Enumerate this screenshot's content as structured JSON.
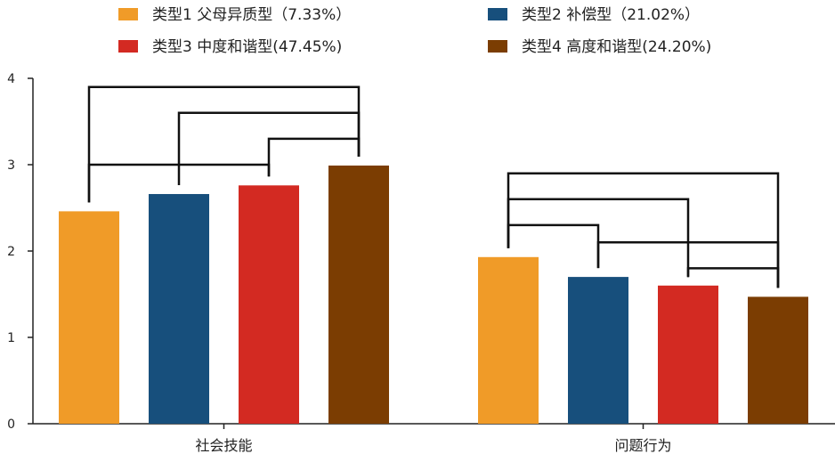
{
  "chart_data": {
    "type": "bar",
    "title": "",
    "xlabel": "",
    "ylabel": "",
    "ylim": [
      0,
      4
    ],
    "yticks": [
      0,
      1,
      2,
      3,
      4
    ],
    "categories": [
      "社会技能",
      "问题行为"
    ],
    "series": [
      {
        "name": "类型1 父母异质型（7.33%）",
        "color": "#F09B28",
        "values": [
          2.46,
          1.93
        ]
      },
      {
        "name": "类型2 补偿型（21.02%）",
        "color": "#174F7C",
        "values": [
          2.66,
          1.7
        ]
      },
      {
        "name": "类型3 中度和谐型(47.45%)",
        "color": "#D32A22",
        "values": [
          2.76,
          1.6
        ]
      },
      {
        "name": "类型4 高度和谐型(24.20%)",
        "color": "#7B3D02",
        "values": [
          2.99,
          1.47
        ]
      }
    ],
    "significance_brackets": [
      {
        "category": 0,
        "from": 0,
        "to": 3,
        "level": 3.9
      },
      {
        "category": 0,
        "from": 1,
        "to": 3,
        "level": 3.6
      },
      {
        "category": 0,
        "from": 2,
        "to": 3,
        "level": 3.3
      },
      {
        "category": 0,
        "from": 0,
        "to": 2,
        "level": 3.0
      },
      {
        "category": 1,
        "from": 0,
        "to": 3,
        "level": 2.9
      },
      {
        "category": 1,
        "from": 0,
        "to": 2,
        "level": 2.6
      },
      {
        "category": 1,
        "from": 0,
        "to": 1,
        "level": 2.3
      },
      {
        "category": 1,
        "from": 1,
        "to": 3,
        "level": 2.1
      },
      {
        "category": 1,
        "from": 2,
        "to": 3,
        "level": 1.8
      }
    ],
    "legend": "top"
  }
}
